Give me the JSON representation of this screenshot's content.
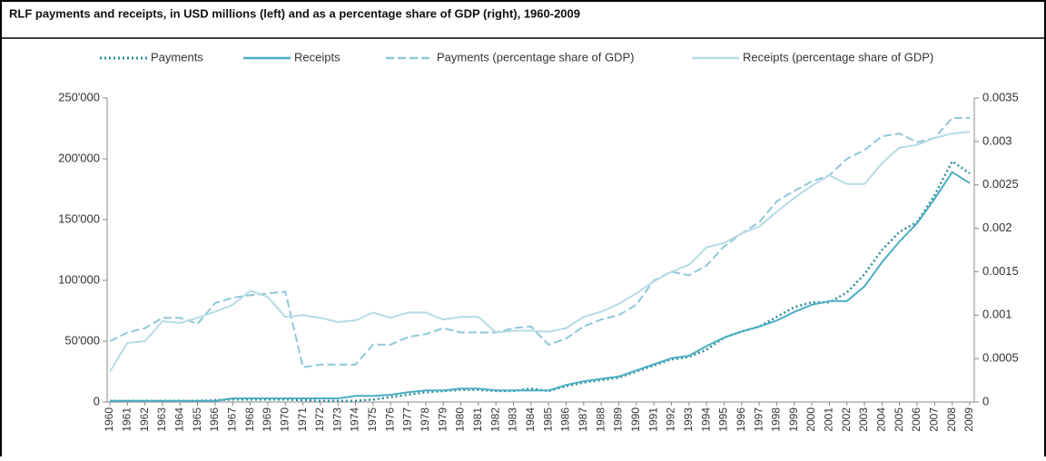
{
  "chart_data": {
    "type": "line",
    "title": "RLF payments and receipts, in USD millions (left) and as a percentage share of GDP (right), 1960-2009",
    "categories": [
      "1960",
      "1961",
      "1962",
      "1963",
      "1964",
      "1965",
      "1966",
      "1967",
      "1968",
      "1969",
      "1970",
      "1971",
      "1972",
      "1973",
      "1974",
      "1975",
      "1976",
      "1977",
      "1978",
      "1979",
      "1980",
      "1981",
      "1982",
      "1983",
      "1984",
      "1985",
      "1986",
      "1987",
      "1988",
      "1989",
      "1990",
      "1991",
      "1992",
      "1993",
      "1994",
      "1995",
      "1996",
      "1997",
      "1998",
      "1999",
      "2000",
      "2001",
      "2002",
      "2003",
      "2004",
      "2005",
      "2006",
      "2007",
      "2008",
      "2009"
    ],
    "series": [
      {
        "name": "Payments",
        "color": "#2f8e9c",
        "line_style": "dotted",
        "values": [
          1000,
          1000,
          1000,
          1000,
          1000,
          1000,
          1500,
          2000,
          2000,
          2000,
          2000,
          1500,
          1000,
          1000,
          1000,
          2000,
          4000,
          6000,
          8000,
          9000,
          10000,
          10000,
          9000,
          9000,
          11000,
          9000,
          13000,
          16000,
          18000,
          20000,
          25000,
          30000,
          35000,
          37000,
          43000,
          53000,
          58000,
          62000,
          70000,
          78000,
          82000,
          82000,
          90000,
          105000,
          125000,
          140000,
          148000,
          170000,
          198000,
          188000
        ]
      },
      {
        "name": "Receipts",
        "color": "#4aaec3",
        "line_style": "solid",
        "values": [
          1000,
          1000,
          1000,
          1000,
          1000,
          1000,
          1000,
          3000,
          3000,
          3000,
          3000,
          3000,
          3000,
          3000,
          5000,
          5000,
          6000,
          8000,
          9500,
          9500,
          11000,
          11000,
          9500,
          9500,
          9500,
          9500,
          14000,
          17000,
          19000,
          21000,
          26000,
          31000,
          36000,
          38000,
          46000,
          53000,
          58000,
          62000,
          67000,
          74000,
          80000,
          83000,
          83000,
          95000,
          115000,
          132000,
          147000,
          167000,
          189000,
          180000
        ]
      },
      {
        "name": "Payments (percentage share of GDP)",
        "color": "#8ec8d9",
        "line_style": "dashed",
        "axis": "y2",
        "values": [
          0.0007,
          0.0008,
          0.00085,
          0.00097,
          0.00097,
          0.0009,
          0.00114,
          0.0012,
          0.00123,
          0.00125,
          0.00127,
          0.0004,
          0.00043,
          0.00043,
          0.00043,
          0.00066,
          0.00066,
          0.00075,
          0.00078,
          0.00085,
          0.0008,
          0.0008,
          0.0008,
          0.00085,
          0.00087,
          0.00066,
          0.00073,
          0.00087,
          0.00095,
          0.001,
          0.00112,
          0.0014,
          0.0015,
          0.00146,
          0.00157,
          0.00179,
          0.00194,
          0.00207,
          0.00231,
          0.00243,
          0.00254,
          0.00261,
          0.0028,
          0.0029,
          0.00306,
          0.00309,
          0.00299,
          0.00304,
          0.00327,
          0.00327
        ]
      },
      {
        "name": "Receipts (percentage share of GDP)",
        "color": "#b6dbe6",
        "line_style": "solid",
        "axis": "y2",
        "values": [
          0.00035,
          0.00068,
          0.0007,
          0.00093,
          0.00091,
          0.00097,
          0.00104,
          0.00112,
          0.00128,
          0.00121,
          0.00098,
          0.001,
          0.00097,
          0.00092,
          0.00094,
          0.00103,
          0.00097,
          0.00103,
          0.00103,
          0.00095,
          0.00098,
          0.00098,
          0.0008,
          0.00082,
          0.00082,
          0.00081,
          0.00085,
          0.00098,
          0.00104,
          0.00113,
          0.00125,
          0.00139,
          0.0015,
          0.00158,
          0.00178,
          0.00183,
          0.00194,
          0.00202,
          0.00219,
          0.00235,
          0.00249,
          0.00261,
          0.00251,
          0.00251,
          0.00275,
          0.00293,
          0.00296,
          0.00304,
          0.00309,
          0.00311
        ]
      }
    ],
    "ylim": [
      0,
      250000
    ],
    "yticks": [
      0,
      {
        "value": 50000,
        "label": "50'000"
      },
      {
        "value": 100000,
        "label": "100'000"
      },
      {
        "value": 150000,
        "label": "150'000"
      },
      {
        "value": 200000,
        "label": "200'000"
      },
      {
        "value": 250000,
        "label": "250'000"
      }
    ],
    "y2lim": [
      0,
      0.0035
    ],
    "y2ticks": [
      0,
      0.0005,
      0.001,
      0.0015,
      0.002,
      0.0025,
      0.003,
      0.0035
    ]
  }
}
